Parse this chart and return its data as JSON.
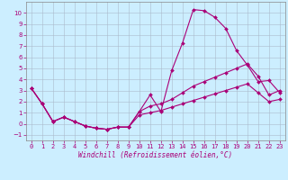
{
  "title": "",
  "xlabel": "Windchill (Refroidissement éolien,°C)",
  "ylabel": "",
  "xlim": [
    -0.5,
    23.5
  ],
  "ylim": [
    -1.5,
    11
  ],
  "yticks": [
    -1,
    0,
    1,
    2,
    3,
    4,
    5,
    6,
    7,
    8,
    9,
    10
  ],
  "xticks": [
    0,
    1,
    2,
    3,
    4,
    5,
    6,
    7,
    8,
    9,
    10,
    11,
    12,
    13,
    14,
    15,
    16,
    17,
    18,
    19,
    20,
    21,
    22,
    23
  ],
  "bg_color": "#cceeff",
  "grid_color": "#aabbcc",
  "line_color": "#aa0077",
  "line1_x": [
    0,
    1,
    2,
    3,
    4,
    5,
    6,
    7,
    8,
    9,
    10,
    11,
    12,
    13,
    14,
    15,
    16,
    17,
    18,
    19,
    20,
    21,
    22,
    23
  ],
  "line1_y": [
    3.2,
    1.8,
    0.2,
    0.6,
    0.2,
    -0.2,
    -0.4,
    -0.5,
    -0.3,
    -0.3,
    1.1,
    2.6,
    1.1,
    4.8,
    7.3,
    10.3,
    10.2,
    9.6,
    8.6,
    6.6,
    5.3,
    3.8,
    3.9,
    2.8
  ],
  "line2_x": [
    0,
    1,
    2,
    3,
    4,
    5,
    6,
    7,
    8,
    9,
    10,
    11,
    12,
    13,
    14,
    15,
    16,
    17,
    18,
    19,
    20,
    21,
    22,
    23
  ],
  "line2_y": [
    3.2,
    1.8,
    0.2,
    0.6,
    0.2,
    -0.2,
    -0.4,
    -0.5,
    -0.3,
    -0.3,
    1.1,
    1.6,
    1.8,
    2.2,
    2.8,
    3.4,
    3.8,
    4.2,
    4.6,
    5.0,
    5.4,
    4.3,
    2.6,
    3.0
  ],
  "line3_x": [
    0,
    1,
    2,
    3,
    4,
    5,
    6,
    7,
    8,
    9,
    10,
    11,
    12,
    13,
    14,
    15,
    16,
    17,
    18,
    19,
    20,
    21,
    22,
    23
  ],
  "line3_y": [
    3.2,
    1.8,
    0.2,
    0.6,
    0.2,
    -0.2,
    -0.4,
    -0.5,
    -0.3,
    -0.3,
    0.8,
    1.0,
    1.2,
    1.5,
    1.8,
    2.1,
    2.4,
    2.7,
    3.0,
    3.3,
    3.6,
    2.8,
    2.0,
    2.2
  ],
  "tick_fontsize": 5,
  "xlabel_fontsize": 5.5,
  "line_width": 0.8,
  "marker_size": 2.0
}
